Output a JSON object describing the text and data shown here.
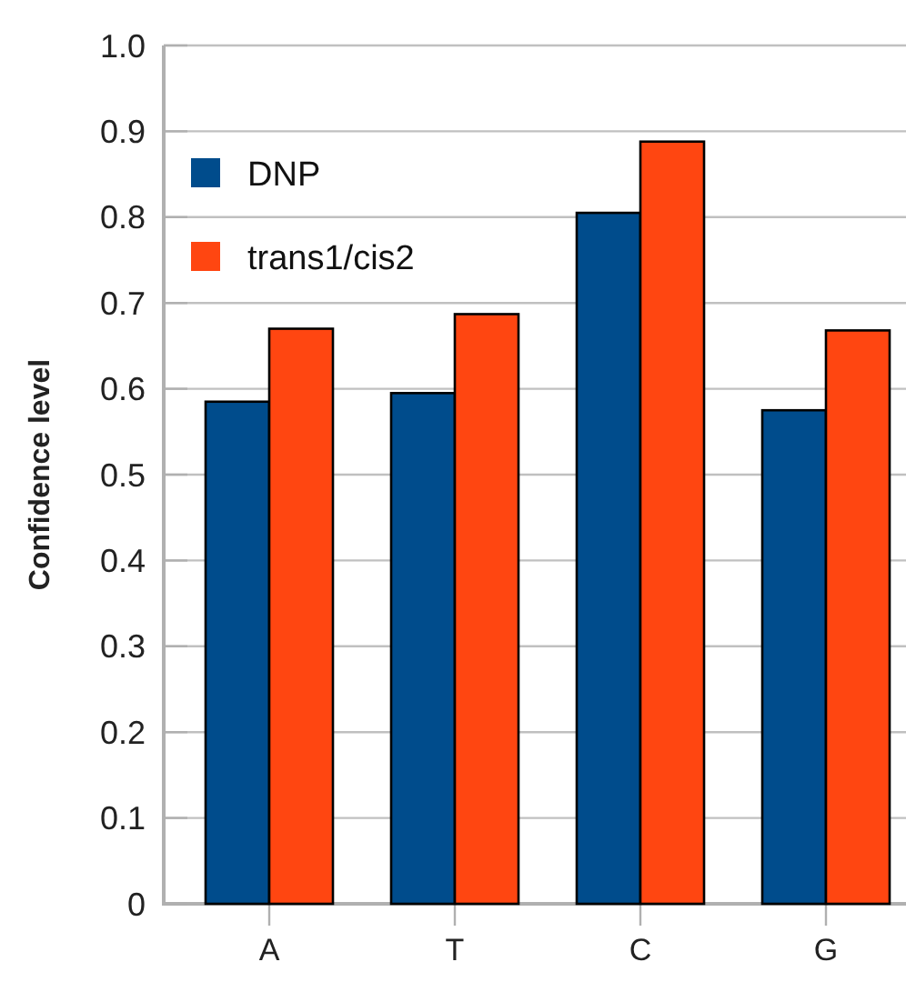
{
  "chart_data": {
    "type": "bar",
    "ylabel": "Confidence level",
    "categories": [
      "A",
      "T",
      "C",
      "G"
    ],
    "series": [
      {
        "name": "DNP",
        "color": "#004c8c",
        "values": [
          0.585,
          0.595,
          0.805,
          0.575
        ]
      },
      {
        "name": "trans1/cis2",
        "color": "#ff4611",
        "values": [
          0.67,
          0.687,
          0.888,
          0.668
        ]
      }
    ],
    "ylim": [
      0,
      1
    ],
    "yticks": [
      0,
      0.1,
      0.2,
      0.3,
      0.4,
      0.5,
      0.6,
      0.7,
      0.8,
      0.9,
      {
        "value": 1,
        "label": "1.0"
      }
    ],
    "grid": "y",
    "legend": "top left"
  }
}
